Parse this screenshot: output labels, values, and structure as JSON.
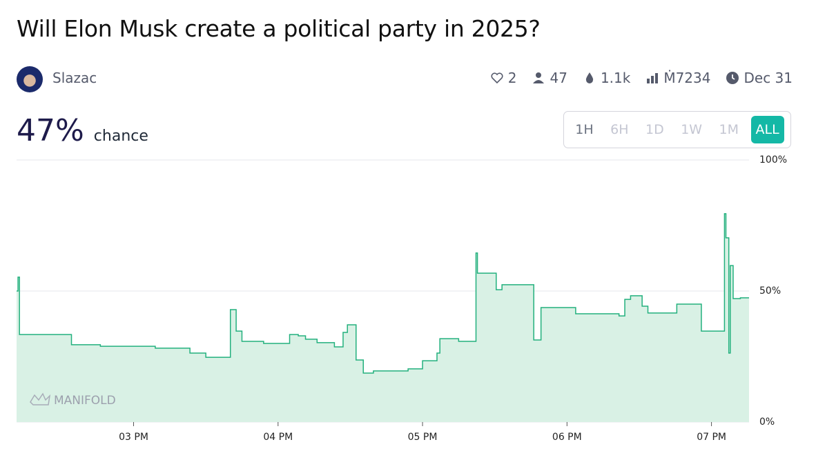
{
  "header": {
    "title": "Will Elon Musk create a political party in 2025?",
    "author": "Slazac",
    "stats": {
      "likes": "2",
      "traders": "47",
      "liquidity": "1.1k",
      "volume": "Ṁ7234",
      "close_date": "Dec 31"
    }
  },
  "probability": {
    "value": "47%",
    "label": "chance"
  },
  "time_buttons": [
    "1H",
    "6H",
    "1D",
    "1W",
    "1M",
    "ALL"
  ],
  "selected_button": "ALL",
  "watermark": "MANIFOLD",
  "chart_data": {
    "type": "step",
    "color": "#22b07d",
    "fill": "#d9f1e5",
    "grid": true,
    "x": [
      14.19,
      14.2,
      14.21,
      14.57,
      14.77,
      15.15,
      15.39,
      15.5,
      15.67,
      15.71,
      15.75,
      15.9,
      16.08,
      16.14,
      16.19,
      16.27,
      16.39,
      16.45,
      16.48,
      16.54,
      16.59,
      16.66,
      16.9,
      17.0,
      17.1,
      17.12,
      17.25,
      17.37,
      17.38,
      17.51,
      17.55,
      17.77,
      17.82,
      18.06,
      18.36,
      18.4,
      18.44,
      18.52,
      18.56,
      18.76,
      18.93,
      19.09,
      19.1,
      19.12,
      19.13,
      19.15,
      19.2,
      19.26
    ],
    "series": [
      {
        "name": "Probability",
        "values": [
          50,
          55.3,
          33.4,
          29.5,
          28.9,
          28.2,
          26.3,
          24.7,
          42.9,
          34.7,
          30.8,
          30,
          33.4,
          32.9,
          31.6,
          30.3,
          28.7,
          34.2,
          37.1,
          23.7,
          18.7,
          19.5,
          20.3,
          23.4,
          26.3,
          31.8,
          30.8,
          64.5,
          56.8,
          50.5,
          52.4,
          31.3,
          43.7,
          41.3,
          40.5,
          46.8,
          48.2,
          44.2,
          41.6,
          45,
          34.7,
          79.5,
          70.3,
          26.3,
          59.7,
          47.1,
          47.4,
          47.4
        ]
      }
    ],
    "xlim": [
      14.19,
      19.26
    ],
    "xticks": [
      {
        "value": 15,
        "label": "03 PM"
      },
      {
        "value": 16,
        "label": "04 PM"
      },
      {
        "value": 17,
        "label": "05 PM"
      },
      {
        "value": 18,
        "label": "06 PM"
      },
      {
        "value": 19,
        "label": "07 PM"
      }
    ],
    "ylim": [
      0,
      100
    ],
    "yticks": [
      {
        "value": 0,
        "label": "0%"
      },
      {
        "value": 50,
        "label": "50%"
      },
      {
        "value": 100,
        "label": "100%"
      }
    ]
  }
}
